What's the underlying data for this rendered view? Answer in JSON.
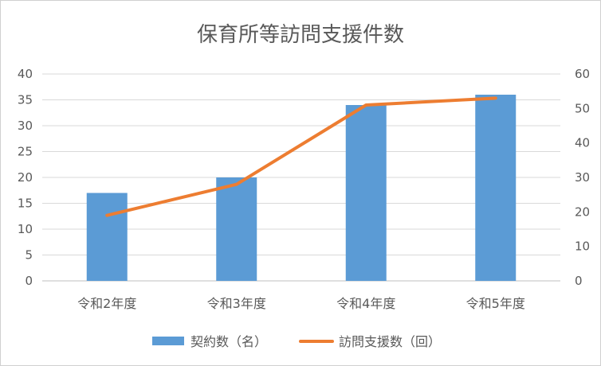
{
  "chart_data": {
    "type": "bar",
    "title": "保育所等訪問支援件数",
    "categories": [
      "令和2年度",
      "令和3年度",
      "令和4年度",
      "令和5年度"
    ],
    "series": [
      {
        "name": "契約数（名）",
        "type": "bar",
        "axis": "left",
        "values": [
          17,
          20,
          34,
          36
        ],
        "color": "#5b9bd5"
      },
      {
        "name": "訪問支援数（回）",
        "type": "line",
        "axis": "right",
        "values": [
          19,
          28,
          51,
          53
        ],
        "color": "#ed7d31"
      }
    ],
    "y_left": {
      "ylim": [
        0,
        40
      ],
      "ticks": [
        0,
        5,
        10,
        15,
        20,
        25,
        30,
        35,
        40
      ]
    },
    "y_right": {
      "ylim": [
        0,
        60
      ],
      "ticks": [
        0,
        10,
        20,
        30,
        40,
        50,
        60
      ]
    },
    "grid": true,
    "legend_position": "bottom"
  }
}
